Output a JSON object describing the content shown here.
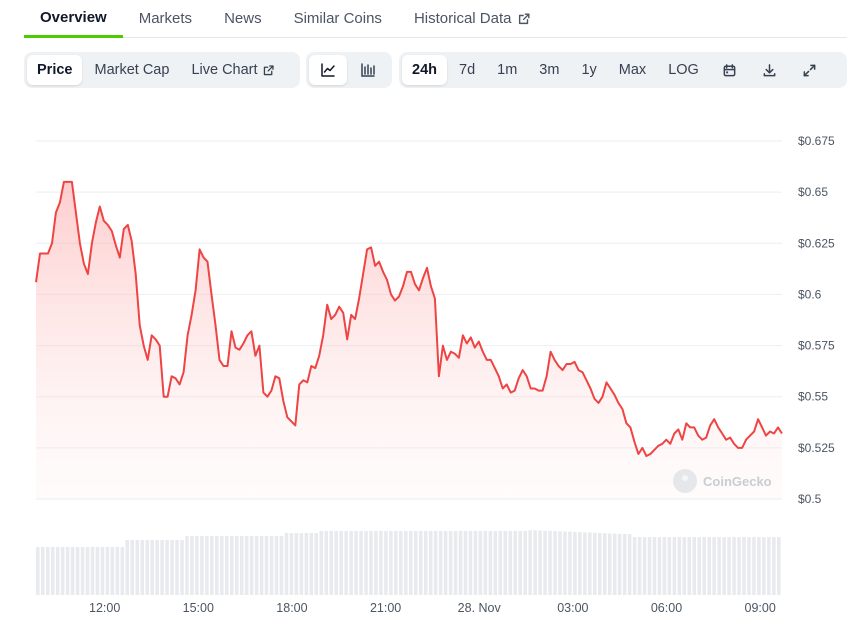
{
  "tabs": [
    {
      "label": "Overview",
      "active": true
    },
    {
      "label": "Markets"
    },
    {
      "label": "News"
    },
    {
      "label": "Similar Coins"
    },
    {
      "label": "Historical Data",
      "external": true
    }
  ],
  "toolbar": {
    "metric_buttons": [
      {
        "label": "Price",
        "active": true
      },
      {
        "label": "Market Cap"
      },
      {
        "label": "Live Chart",
        "external": true
      }
    ],
    "chart_type_icons": [
      "line-chart-icon",
      "candlestick-chart-icon"
    ],
    "range_buttons": [
      {
        "label": "24h",
        "active": true
      },
      {
        "label": "7d"
      },
      {
        "label": "1m"
      },
      {
        "label": "3m"
      },
      {
        "label": "1y"
      },
      {
        "label": "Max"
      },
      {
        "label": "LOG"
      }
    ],
    "action_icons": [
      "calendar-icon",
      "download-icon",
      "fullscreen-icon"
    ]
  },
  "watermark": "CoinGecko",
  "colors": {
    "accent": "#4bcc00",
    "line": "#ef4444",
    "area_top": "#fecaca",
    "volume": "#e8eaed"
  },
  "chart_data": {
    "type": "area",
    "title": "",
    "xlabel": "",
    "ylabel": "",
    "ylim": [
      0.5,
      0.675
    ],
    "yticks": [
      "$0.675",
      "$0.65",
      "$0.625",
      "$0.6",
      "$0.575",
      "$0.55",
      "$0.525",
      "$0.5"
    ],
    "ytick_values": [
      0.675,
      0.65,
      0.625,
      0.6,
      0.575,
      0.55,
      0.525,
      0.5
    ],
    "xticks": [
      "12:00",
      "15:00",
      "18:00",
      "21:00",
      "28. Nov",
      "03:00",
      "06:00",
      "09:00"
    ],
    "xtick_hours": [
      12,
      15,
      18,
      21,
      24,
      27,
      30,
      33
    ],
    "x_range_hours": [
      9.8,
      33.7
    ],
    "grid": true,
    "legend": "none",
    "series": [
      {
        "values": [
          0.606,
          0.62,
          0.62,
          0.62,
          0.625,
          0.64,
          0.645,
          0.655,
          0.655,
          0.655,
          0.64,
          0.625,
          0.615,
          0.61,
          0.625,
          0.635,
          0.643,
          0.636,
          0.634,
          0.631,
          0.624,
          0.618,
          0.632,
          0.634,
          0.626,
          0.61,
          0.585,
          0.575,
          0.568,
          0.58,
          0.578,
          0.575,
          0.55,
          0.55,
          0.56,
          0.559,
          0.556,
          0.562,
          0.58,
          0.59,
          0.602,
          0.622,
          0.618,
          0.616,
          0.6,
          0.585,
          0.568,
          0.565,
          0.565,
          0.582,
          0.574,
          0.573,
          0.576,
          0.58,
          0.582,
          0.57,
          0.575,
          0.552,
          0.55,
          0.553,
          0.56,
          0.559,
          0.548,
          0.54,
          0.538,
          0.536,
          0.556,
          0.558,
          0.557,
          0.565,
          0.564,
          0.57,
          0.58,
          0.595,
          0.588,
          0.59,
          0.594,
          0.591,
          0.578,
          0.59,
          0.588,
          0.598,
          0.61,
          0.622,
          0.623,
          0.614,
          0.616,
          0.611,
          0.607,
          0.6,
          0.597,
          0.599,
          0.604,
          0.611,
          0.611,
          0.605,
          0.602,
          0.608,
          0.613,
          0.604,
          0.598,
          0.56,
          0.575,
          0.568,
          0.572,
          0.571,
          0.569,
          0.58,
          0.576,
          0.579,
          0.574,
          0.577,
          0.572,
          0.568,
          0.568,
          0.564,
          0.56,
          0.554,
          0.556,
          0.552,
          0.553,
          0.559,
          0.563,
          0.56,
          0.554,
          0.554,
          0.553,
          0.553,
          0.56,
          0.572,
          0.568,
          0.565,
          0.563,
          0.566,
          0.566,
          0.567,
          0.563,
          0.562,
          0.558,
          0.554,
          0.549,
          0.547,
          0.55,
          0.557,
          0.554,
          0.551,
          0.547,
          0.544,
          0.537,
          0.535,
          0.528,
          0.522,
          0.525,
          0.521,
          0.522,
          0.524,
          0.526,
          0.527,
          0.529,
          0.527,
          0.532,
          0.534,
          0.529,
          0.537,
          0.535,
          0.535,
          0.531,
          0.529,
          0.53,
          0.536,
          0.539,
          0.535,
          0.532,
          0.529,
          0.53,
          0.527,
          0.525,
          0.525,
          0.529,
          0.531,
          0.533,
          0.539,
          0.535,
          0.531,
          0.533,
          0.532,
          0.535,
          0.532
        ]
      }
    ]
  }
}
